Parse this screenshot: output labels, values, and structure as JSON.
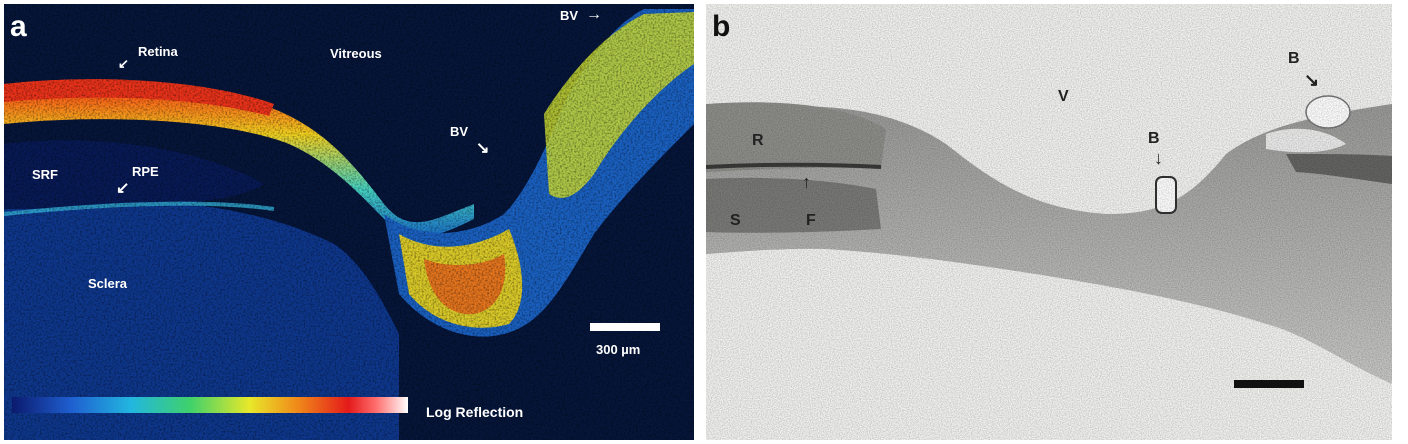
{
  "panel_a": {
    "letter": "a",
    "labels": {
      "retina": "Retina",
      "vitreous": "Vitreous",
      "bv_top": "BV",
      "bv_mid": "BV",
      "srf": "SRF",
      "rpe": "RPE",
      "sclera": "Sclera"
    },
    "scale_label": "300 µm",
    "colorbar_label": "Log Reflection"
  },
  "panel_b": {
    "letter": "b",
    "labels": {
      "v": "V",
      "r": "R",
      "s": "S",
      "f": "F",
      "b_mid": "B",
      "b_top": "B"
    }
  }
}
